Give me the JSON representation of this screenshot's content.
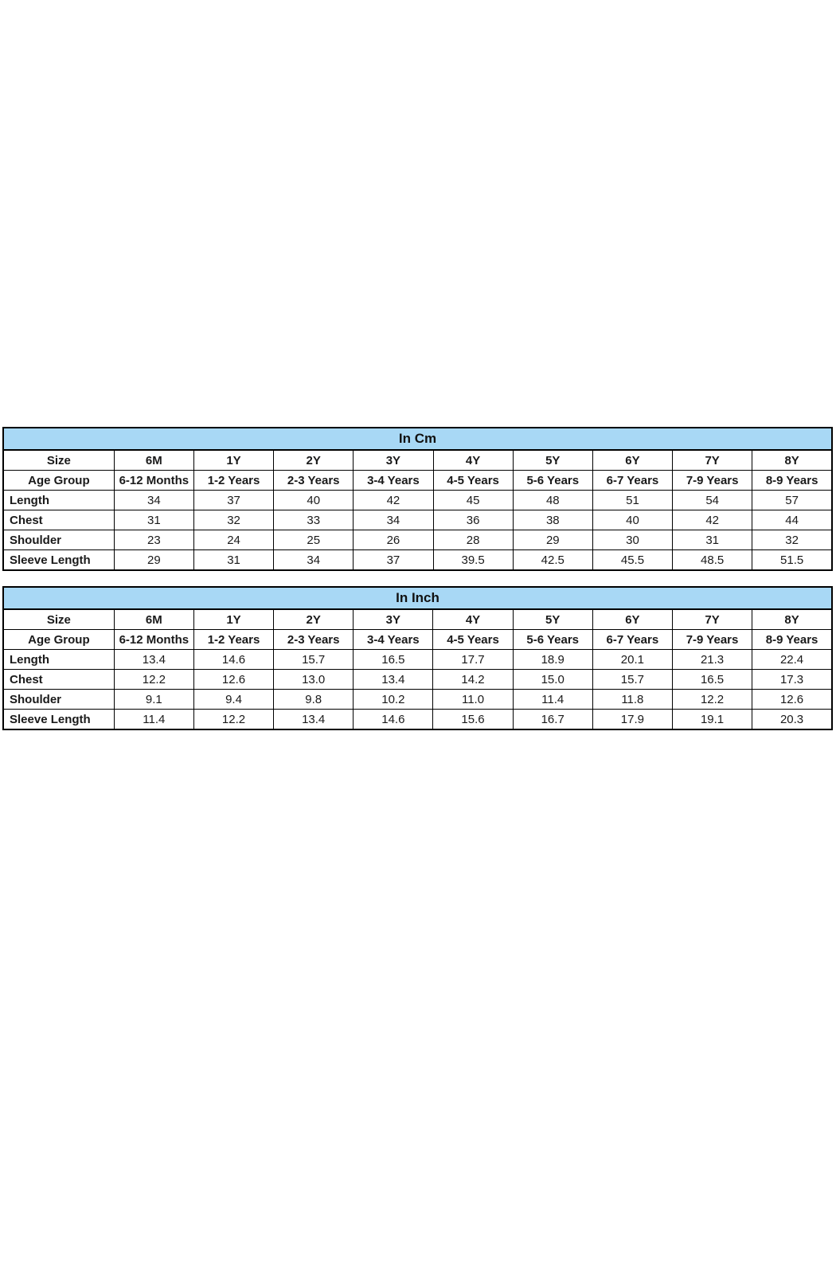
{
  "page": {
    "background": "#ffffff",
    "border_color": "#000000",
    "text_color": "#1a1a1a"
  },
  "tables": [
    {
      "id": "cm",
      "title": "In Cm",
      "header_bg": "#a8d8f5",
      "rows": [
        {
          "label": "Size",
          "center_label": true,
          "bold_values": true,
          "values": [
            "6M",
            "1Y",
            "2Y",
            "3Y",
            "4Y",
            "5Y",
            "6Y",
            "7Y",
            "8Y"
          ]
        },
        {
          "label": "Age Group",
          "center_label": true,
          "bold_values": true,
          "values": [
            "6-12 Months",
            "1-2 Years",
            "2-3 Years",
            "3-4 Years",
            "4-5 Years",
            "5-6 Years",
            "6-7 Years",
            "7-9 Years",
            "8-9 Years"
          ]
        },
        {
          "label": "Length",
          "center_label": false,
          "bold_values": false,
          "values": [
            "34",
            "37",
            "40",
            "42",
            "45",
            "48",
            "51",
            "54",
            "57"
          ]
        },
        {
          "label": "Chest",
          "center_label": false,
          "bold_values": false,
          "values": [
            "31",
            "32",
            "33",
            "34",
            "36",
            "38",
            "40",
            "42",
            "44"
          ]
        },
        {
          "label": "Shoulder",
          "center_label": false,
          "bold_values": false,
          "values": [
            "23",
            "24",
            "25",
            "26",
            "28",
            "29",
            "30",
            "31",
            "32"
          ]
        },
        {
          "label": "Sleeve Length",
          "center_label": false,
          "bold_values": false,
          "values": [
            "29",
            "31",
            "34",
            "37",
            "39.5",
            "42.5",
            "45.5",
            "48.5",
            "51.5"
          ]
        }
      ]
    },
    {
      "id": "inch",
      "title": "In Inch",
      "header_bg": "#a8d8f5",
      "rows": [
        {
          "label": "Size",
          "center_label": true,
          "bold_values": true,
          "values": [
            "6M",
            "1Y",
            "2Y",
            "3Y",
            "4Y",
            "5Y",
            "6Y",
            "7Y",
            "8Y"
          ]
        },
        {
          "label": "Age Group",
          "center_label": true,
          "bold_values": true,
          "values": [
            "6-12 Months",
            "1-2 Years",
            "2-3 Years",
            "3-4 Years",
            "4-5 Years",
            "5-6 Years",
            "6-7 Years",
            "7-9 Years",
            "8-9 Years"
          ]
        },
        {
          "label": "Length",
          "center_label": false,
          "bold_values": false,
          "values": [
            "13.4",
            "14.6",
            "15.7",
            "16.5",
            "17.7",
            "18.9",
            "20.1",
            "21.3",
            "22.4"
          ]
        },
        {
          "label": "Chest",
          "center_label": false,
          "bold_values": false,
          "values": [
            "12.2",
            "12.6",
            "13.0",
            "13.4",
            "14.2",
            "15.0",
            "15.7",
            "16.5",
            "17.3"
          ]
        },
        {
          "label": "Shoulder",
          "center_label": false,
          "bold_values": false,
          "values": [
            "9.1",
            "9.4",
            "9.8",
            "10.2",
            "11.0",
            "11.4",
            "11.8",
            "12.2",
            "12.6"
          ]
        },
        {
          "label": "Sleeve Length",
          "center_label": false,
          "bold_values": false,
          "values": [
            "11.4",
            "12.2",
            "13.4",
            "14.6",
            "15.6",
            "16.7",
            "17.9",
            "19.1",
            "20.3"
          ]
        }
      ]
    }
  ]
}
